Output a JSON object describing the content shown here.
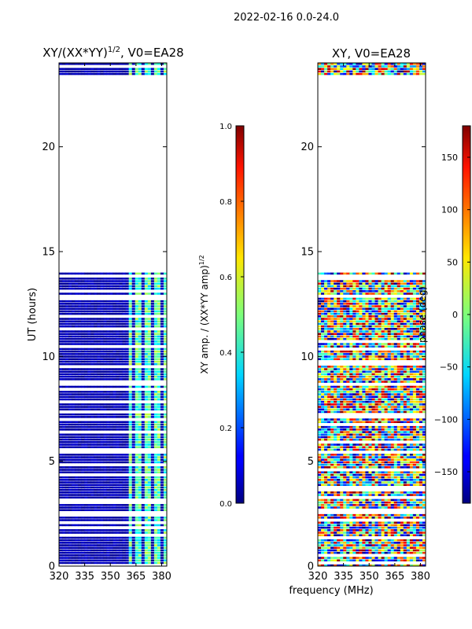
{
  "chart_data": {
    "suptitle": "2022-02-16 0.0-24.0",
    "xlabel": "frequency (MHz)",
    "panels": [
      {
        "type": "heatmap",
        "title_main": "XY/(XX*YY)",
        "title_sup": "1/2",
        "title_rest": ", V0=EA28",
        "ylabel": "UT (hours)",
        "xlim": [
          320,
          383
        ],
        "ylim": [
          0,
          24
        ],
        "xticks": [
          320,
          335,
          350,
          365,
          380
        ],
        "yticks": [
          0,
          5,
          10,
          15,
          20
        ],
        "colorbar": {
          "label": "XY amp. / (XX*YY amp)",
          "label_sup": "1/2",
          "range": [
            0.0,
            1.0
          ],
          "ticks": [
            "0.0",
            "0.2",
            "0.4",
            "0.6",
            "0.8",
            "1.0"
          ]
        },
        "coverage_hours": [
          [
            0,
            14.0
          ],
          [
            23.5,
            24.0
          ]
        ],
        "bright_channel_band_mhz": [
          360,
          383
        ]
      },
      {
        "type": "heatmap",
        "title_main": "XY, V0=EA28",
        "ylabel": "",
        "xlim": [
          320,
          383
        ],
        "ylim": [
          0,
          24
        ],
        "xticks": [
          320,
          335,
          350,
          365,
          380
        ],
        "yticks": [
          0,
          5,
          10,
          15,
          20
        ],
        "colorbar": {
          "label": "phase (deg)",
          "range": [
            -180,
            180
          ],
          "ticks": [
            "−150",
            "−100",
            "−50",
            "0",
            "50",
            "100",
            "150"
          ]
        },
        "coverage_hours": [
          [
            0,
            14.0
          ],
          [
            23.5,
            24.0
          ]
        ]
      }
    ]
  }
}
